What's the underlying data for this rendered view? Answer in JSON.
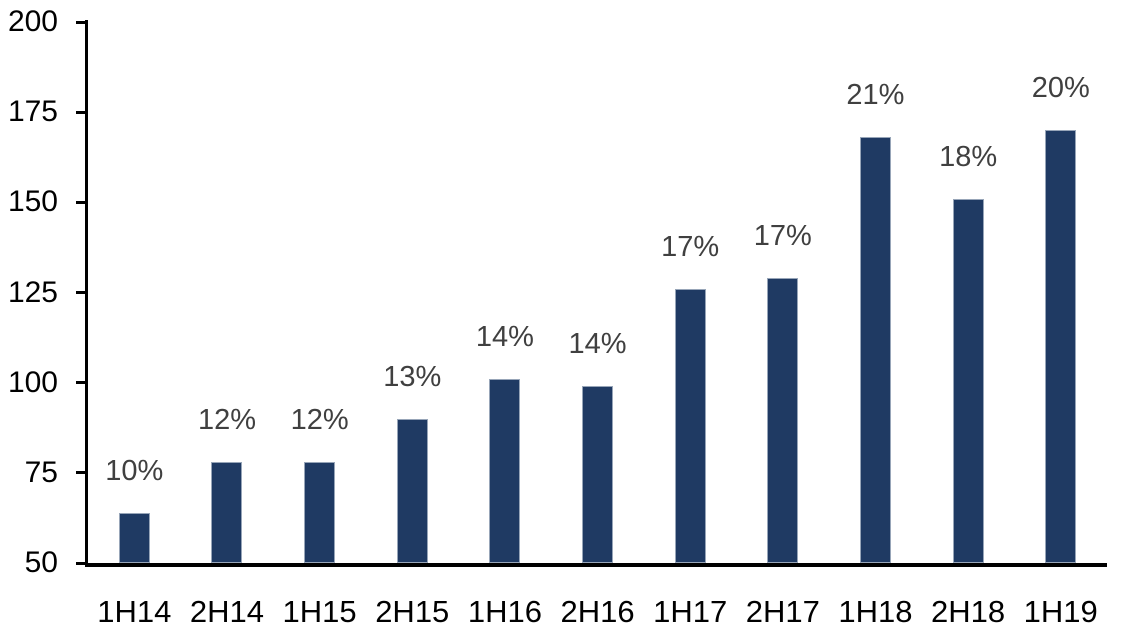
{
  "chart_data": {
    "type": "bar",
    "title": "",
    "xlabel": "",
    "ylabel": "",
    "categories": [
      "1H14",
      "2H14",
      "1H15",
      "2H15",
      "1H16",
      "2H16",
      "1H17",
      "2H17",
      "1H18",
      "2H18",
      "1H19"
    ],
    "values": [
      64,
      78,
      78,
      90,
      101,
      99,
      126,
      129,
      168,
      151,
      170
    ],
    "bar_labels": [
      "10%",
      "12%",
      "12%",
      "13%",
      "14%",
      "14%",
      "17%",
      "17%",
      "21%",
      "18%",
      "20%"
    ],
    "ylim": [
      50,
      200
    ],
    "ytick_step": 25,
    "yticks": [
      200,
      175,
      150,
      125,
      100,
      75,
      50
    ],
    "grid": false,
    "legend_position": "none",
    "colors": {
      "bar_fill": "#1f3a63",
      "bar_border": "#97a5b8",
      "axis_line": "#000000",
      "tick_label": "#000000",
      "category_label": "#000000",
      "data_label": "#404040",
      "background": "#ffffff"
    }
  }
}
